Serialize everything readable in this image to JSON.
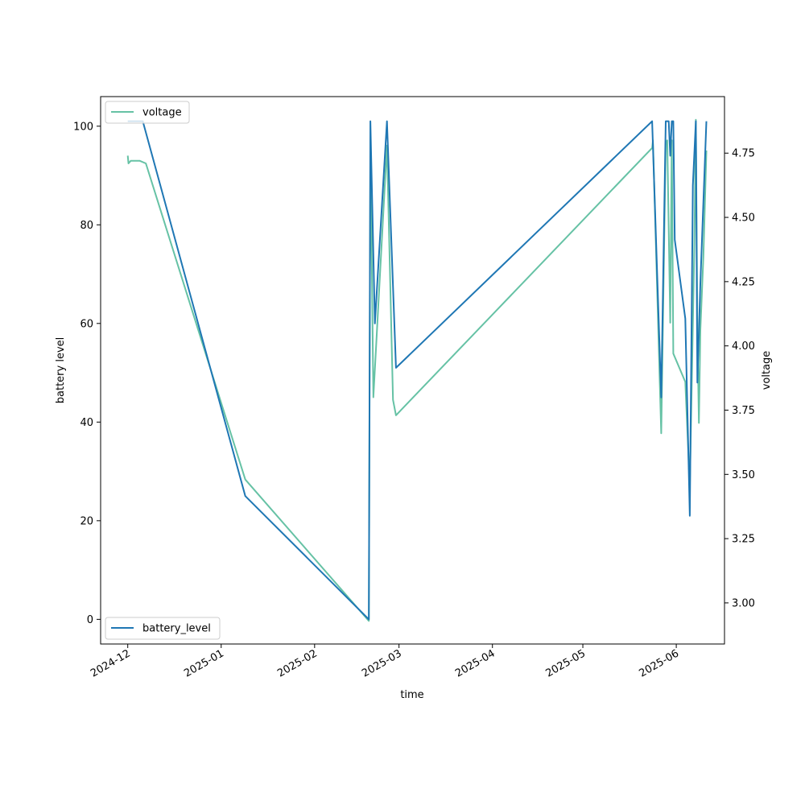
{
  "chart_data": {
    "type": "line",
    "xlabel": "time",
    "ylabel": "battery level",
    "y2label": "voltage",
    "xlim": [
      "2024-11-22",
      "2025-06-17"
    ],
    "ylim": [
      -5,
      106
    ],
    "y2lim": [
      2.84,
      4.97
    ],
    "x_ticks": [
      "2024-12",
      "2025-01",
      "2025-02",
      "2025-03",
      "2025-04",
      "2025-05",
      "2025-06"
    ],
    "y_ticks": [
      0,
      20,
      40,
      60,
      80,
      100
    ],
    "y2_ticks": [
      3.0,
      3.25,
      3.5,
      3.75,
      4.0,
      4.25,
      4.5,
      4.75
    ],
    "y2_tick_labels": [
      "3.00",
      "3.25",
      "3.50",
      "3.75",
      "4.00",
      "4.25",
      "4.50",
      "4.75"
    ],
    "series": [
      {
        "name": "battery_level",
        "axis": "left",
        "color": "#1f77b4",
        "legend_position": "lower-left",
        "points": [
          [
            "2024-12-01T00:00",
            101
          ],
          [
            "2024-12-06T00:00",
            101
          ],
          [
            "2025-01-09T00:00",
            25
          ],
          [
            "2025-02-19T00:00",
            0
          ],
          [
            "2025-02-19T12:00",
            101
          ],
          [
            "2025-02-21T00:00",
            60
          ],
          [
            "2025-02-25T00:00",
            101
          ],
          [
            "2025-02-28T00:00",
            51
          ],
          [
            "2025-05-24T00:00",
            101
          ],
          [
            "2025-05-27T00:00",
            45
          ],
          [
            "2025-05-28T12:00",
            101
          ],
          [
            "2025-05-29T12:00",
            101
          ],
          [
            "2025-05-30T00:00",
            94
          ],
          [
            "2025-05-30T12:00",
            101
          ],
          [
            "2025-05-31T00:00",
            101
          ],
          [
            "2025-05-31T12:00",
            77
          ],
          [
            "2025-06-04T00:00",
            61
          ],
          [
            "2025-06-05T12:00",
            21
          ],
          [
            "2025-06-06T12:00",
            88
          ],
          [
            "2025-06-07T12:00",
            101
          ],
          [
            "2025-06-08T00:00",
            48
          ],
          [
            "2025-06-09T00:00",
            68
          ],
          [
            "2025-06-11T00:00",
            101
          ]
        ]
      },
      {
        "name": "voltage",
        "axis": "right",
        "color": "#66c2a5",
        "legend_position": "upper-left",
        "points": [
          [
            "2024-12-01T00:00",
            4.74
          ],
          [
            "2024-12-01T06:00",
            4.71
          ],
          [
            "2024-12-02T00:00",
            4.72
          ],
          [
            "2024-12-05T00:00",
            4.72
          ],
          [
            "2024-12-07T00:00",
            4.71
          ],
          [
            "2025-01-09T00:00",
            3.48
          ],
          [
            "2025-02-19T00:00",
            2.93
          ],
          [
            "2025-02-19T12:00",
            4.8
          ],
          [
            "2025-02-20T12:00",
            3.8
          ],
          [
            "2025-02-25T00:00",
            4.78
          ],
          [
            "2025-02-27T00:00",
            3.79
          ],
          [
            "2025-02-28T00:00",
            3.73
          ],
          [
            "2025-05-24T00:00",
            4.77
          ],
          [
            "2025-05-24T06:00",
            4.8
          ],
          [
            "2025-05-27T00:00",
            3.66
          ],
          [
            "2025-05-28T12:00",
            4.79
          ],
          [
            "2025-05-29T00:00",
            4.8
          ],
          [
            "2025-05-30T00:00",
            4.09
          ],
          [
            "2025-05-30T12:00",
            4.8
          ],
          [
            "2025-05-31T00:00",
            3.97
          ],
          [
            "2025-06-04T00:00",
            3.86
          ],
          [
            "2025-06-05T12:00",
            3.45
          ],
          [
            "2025-06-07T00:00",
            4.4
          ],
          [
            "2025-06-07T12:00",
            4.88
          ],
          [
            "2025-06-08T00:00",
            4.06
          ],
          [
            "2025-06-08T12:00",
            3.7
          ],
          [
            "2025-06-09T00:00",
            4.06
          ],
          [
            "2025-06-10T00:00",
            4.35
          ],
          [
            "2025-06-11T00:00",
            4.76
          ]
        ]
      }
    ]
  }
}
